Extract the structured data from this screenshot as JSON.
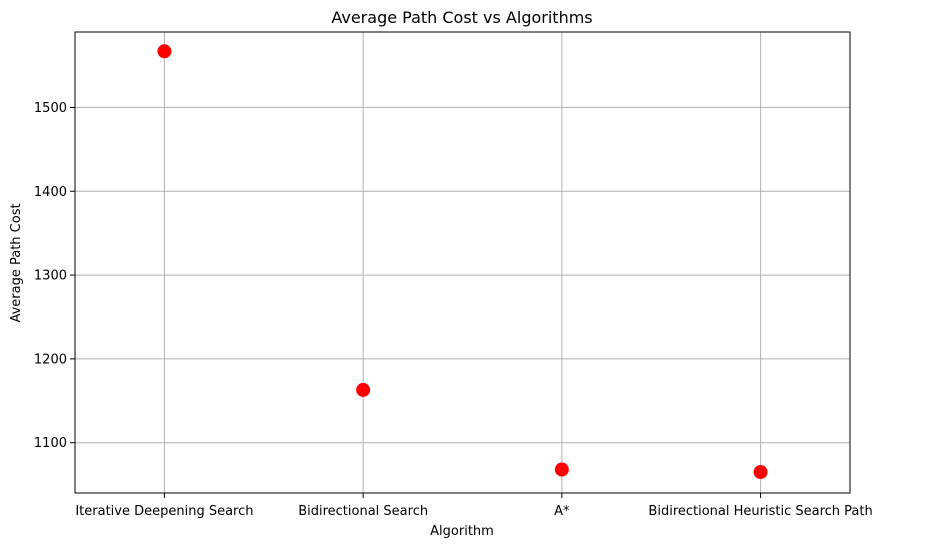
{
  "chart_data": {
    "type": "scatter",
    "title": "Average Path Cost vs Algorithms",
    "xlabel": "Algorithm",
    "ylabel": "Average Path Cost",
    "categories": [
      "Iterative Deepening Search",
      "Bidirectional Search",
      "A*",
      "Bidirectional Heuristic Search Path"
    ],
    "values": [
      1567,
      1163,
      1068,
      1065
    ],
    "ylim": [
      1040,
      1590
    ],
    "yticks": [
      1100,
      1200,
      1300,
      1400,
      1500
    ],
    "grid": true,
    "marker_color": "#ff0000"
  }
}
